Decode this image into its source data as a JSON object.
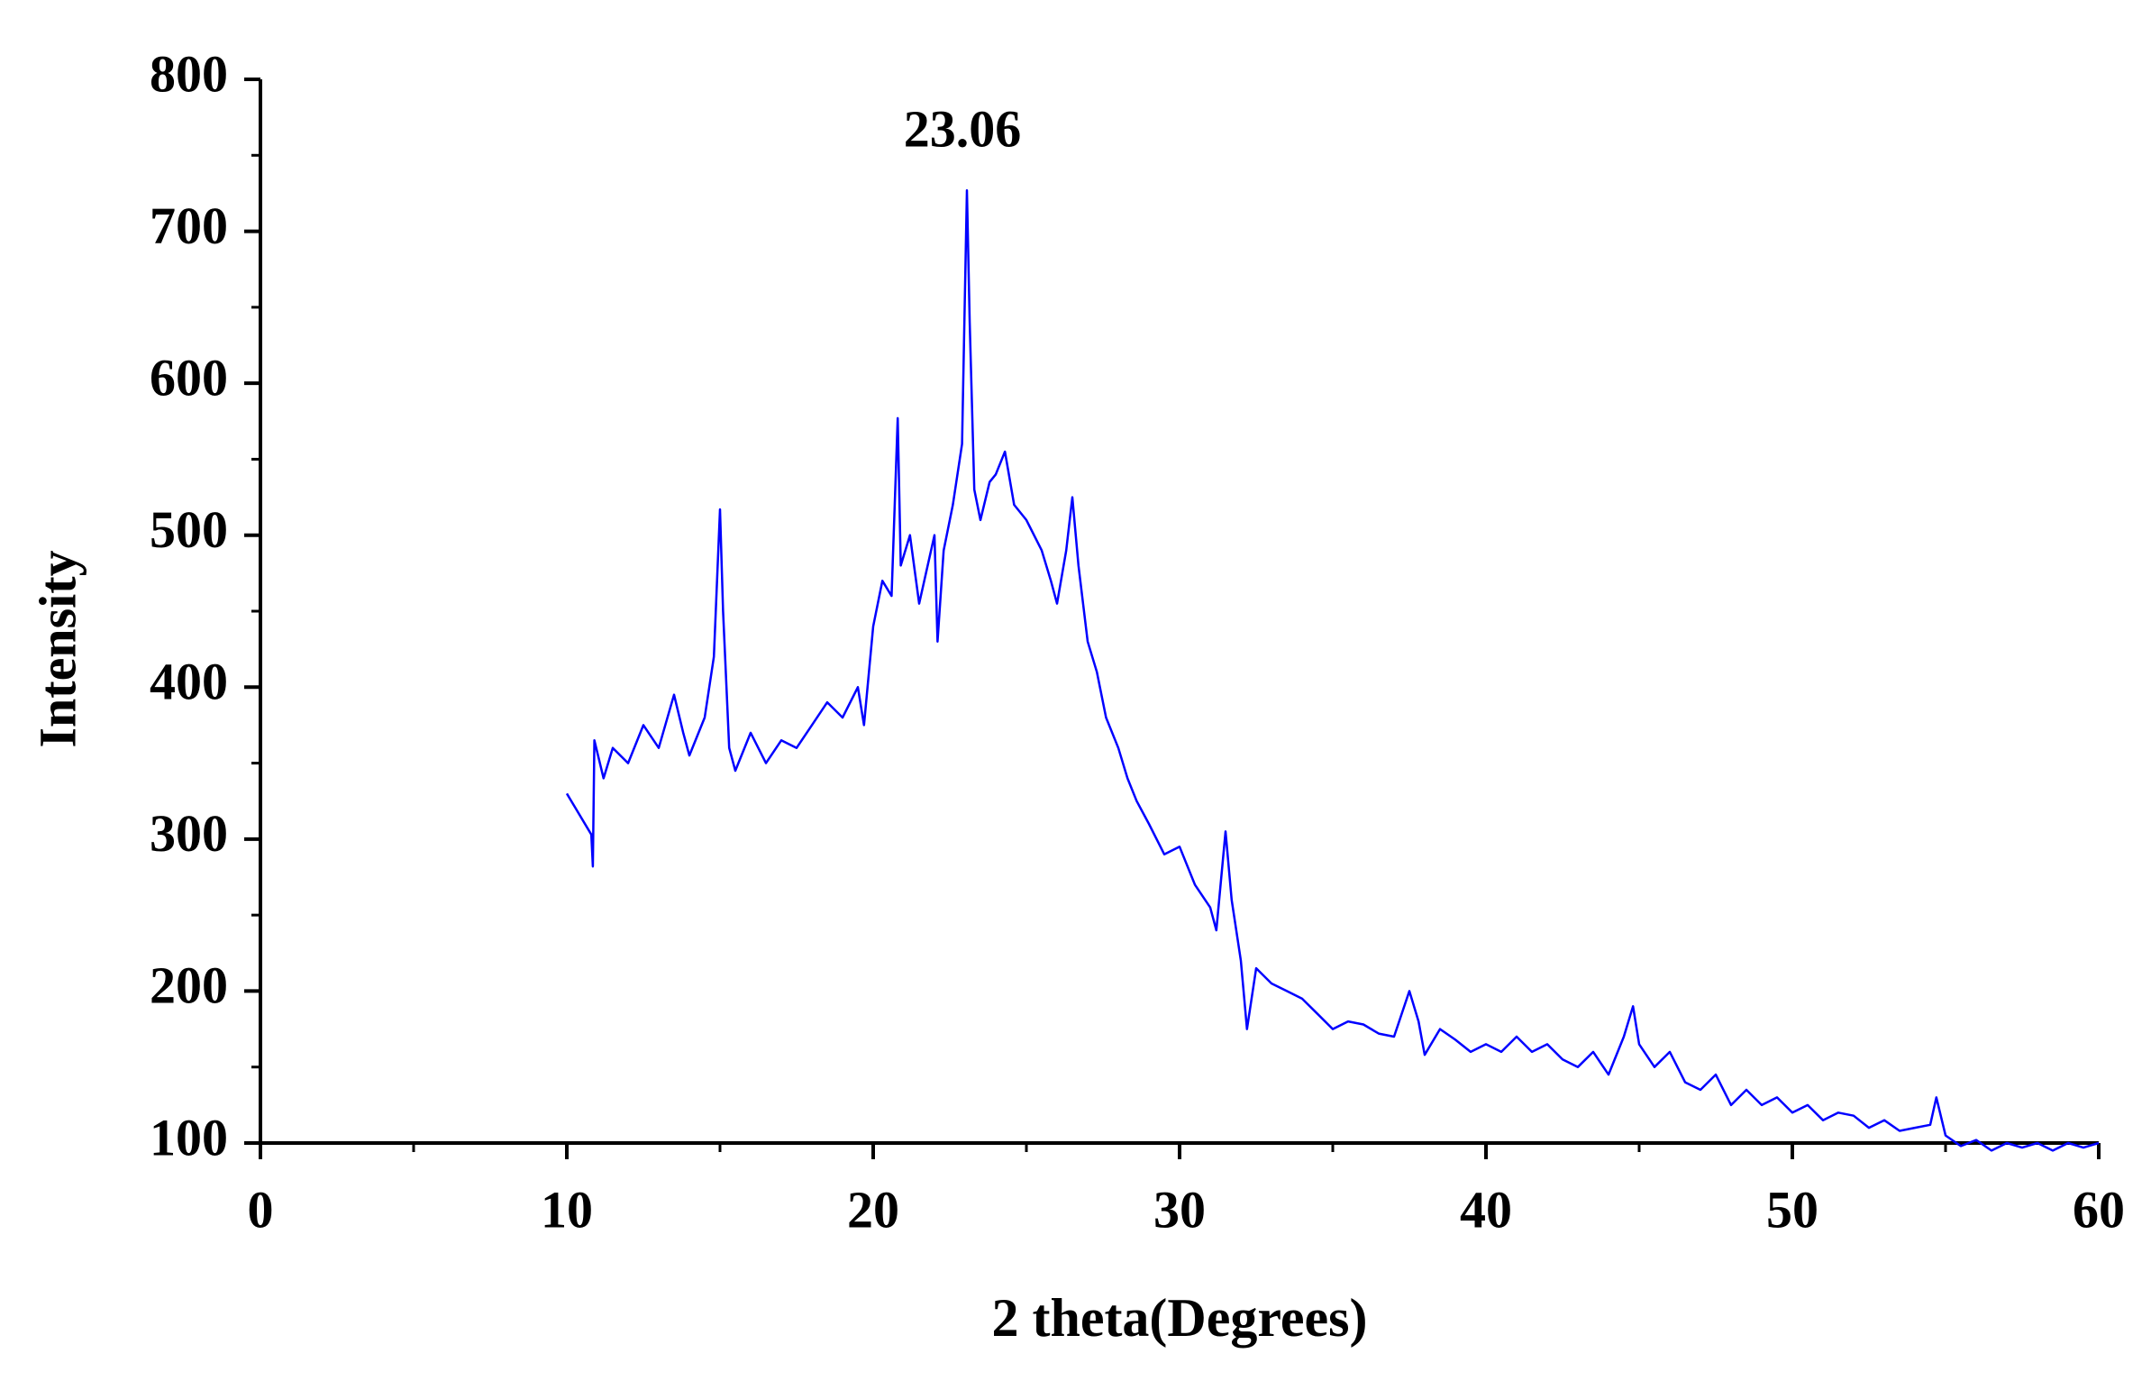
{
  "chart_data": {
    "type": "line",
    "xlabel": "2 theta(Degrees)",
    "ylabel": "Intensity",
    "annotations": [
      {
        "text": "23.06"
      }
    ],
    "xlim": [
      0,
      60
    ],
    "xticks": [
      0,
      10,
      20,
      30,
      40,
      50,
      60
    ],
    "ylim": [
      100,
      800
    ],
    "yticks": [
      100,
      200,
      300,
      400,
      500,
      600,
      700,
      800
    ],
    "x": [
      10.0,
      10.8,
      10.85,
      10.9,
      11.2,
      11.5,
      12,
      12.5,
      13,
      13.5,
      13.8,
      14,
      14.5,
      14.8,
      15.0,
      15.1,
      15.3,
      15.5,
      16,
      16.5,
      17,
      17.5,
      18,
      18.5,
      19,
      19.5,
      19.7,
      20,
      20.3,
      20.6,
      20.8,
      20.9,
      21.2,
      21.5,
      22,
      22.1,
      22.3,
      22.6,
      22.9,
      23.06,
      23.15,
      23.3,
      23.5,
      23.8,
      24,
      24.3,
      24.6,
      25,
      25.5,
      25.8,
      26,
      26.3,
      26.5,
      26.7,
      27,
      27.3,
      27.6,
      28,
      28.3,
      28.6,
      29,
      29.5,
      30,
      30.5,
      31,
      31.2,
      31.5,
      31.7,
      32,
      32.2,
      32.5,
      33,
      33.5,
      34,
      34.5,
      35,
      35.5,
      36,
      36.5,
      37,
      37.5,
      37.8,
      38,
      38.5,
      39,
      39.5,
      40,
      40.5,
      41,
      41.5,
      42,
      42.5,
      43,
      43.5,
      44,
      44.5,
      44.8,
      45,
      45.5,
      46,
      46.5,
      47,
      47.5,
      48,
      48.5,
      49,
      49.5,
      50,
      50.5,
      51,
      51.5,
      52,
      52.5,
      53,
      53.5,
      54,
      54.5,
      54.7,
      55,
      55.5,
      56,
      56.5,
      57,
      57.5,
      58,
      58.5,
      59,
      59.5,
      60
    ],
    "series": [
      {
        "color": "#0000ff",
        "values": [
          330,
          303,
          282,
          365,
          340,
          360,
          350,
          375,
          360,
          395,
          370,
          355,
          380,
          420,
          517,
          450,
          360,
          345,
          370,
          350,
          365,
          360,
          375,
          390,
          380,
          400,
          375,
          440,
          470,
          460,
          577,
          480,
          500,
          455,
          500,
          430,
          490,
          520,
          560,
          727,
          640,
          530,
          510,
          535,
          540,
          555,
          520,
          510,
          490,
          470,
          455,
          490,
          525,
          480,
          430,
          410,
          380,
          360,
          340,
          325,
          310,
          290,
          295,
          270,
          255,
          240,
          305,
          260,
          220,
          175,
          215,
          205,
          200,
          195,
          185,
          175,
          180,
          178,
          172,
          170,
          200,
          180,
          158,
          175,
          168,
          160,
          165,
          160,
          170,
          160,
          165,
          155,
          150,
          160,
          145,
          170,
          190,
          165,
          150,
          160,
          140,
          135,
          145,
          125,
          135,
          125,
          130,
          120,
          125,
          115,
          120,
          118,
          110,
          115,
          108,
          110,
          112,
          130,
          105,
          98,
          102,
          95,
          100,
          97,
          100,
          95,
          100,
          97,
          100
        ]
      }
    ]
  }
}
